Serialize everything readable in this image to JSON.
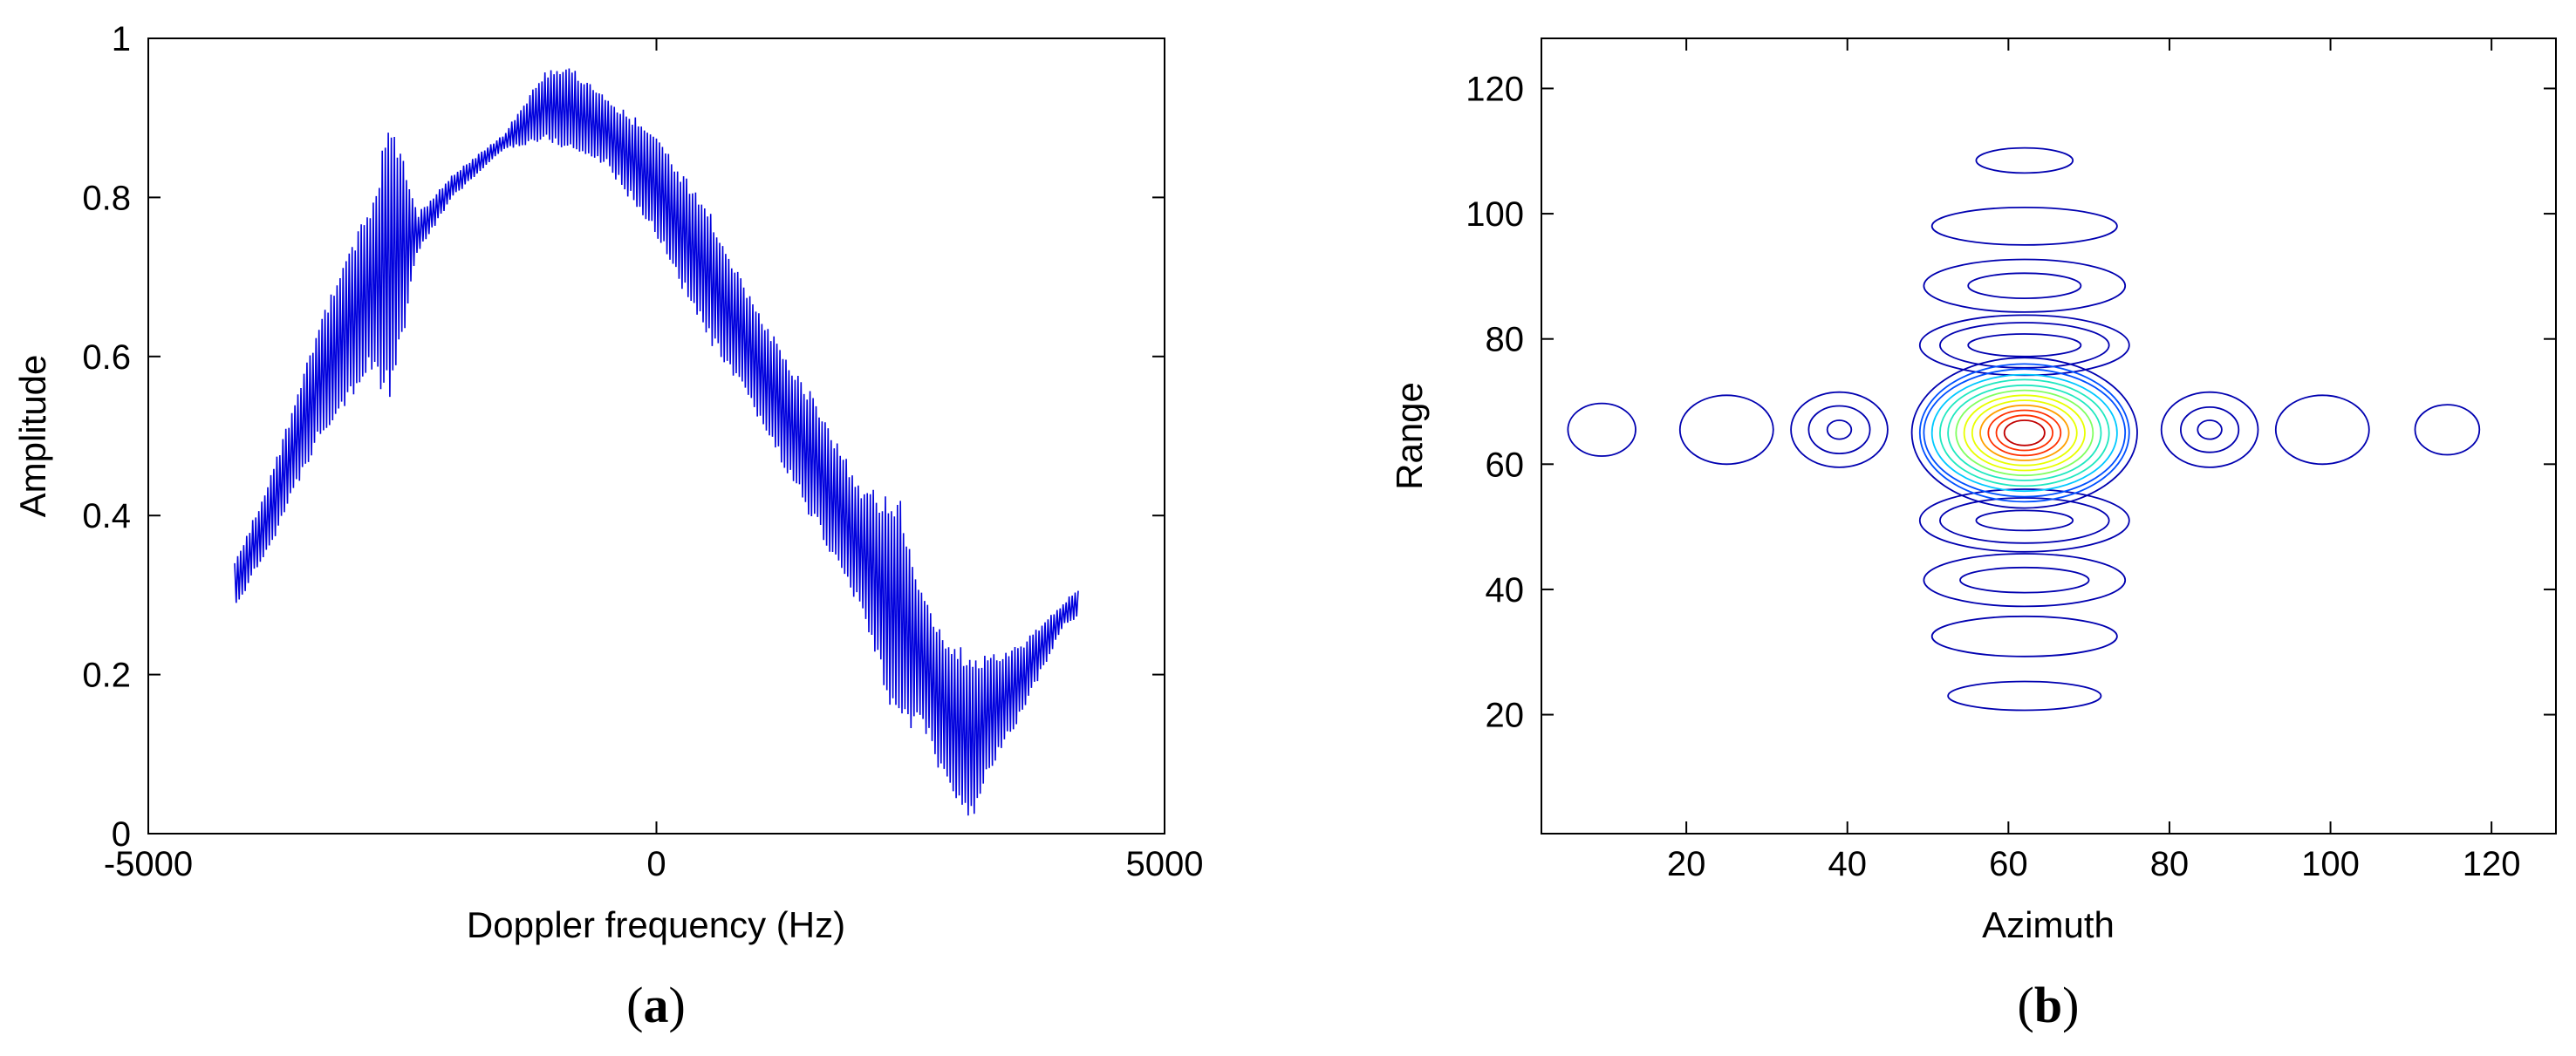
{
  "chart_data": [
    {
      "type": "line",
      "caption_open": "(",
      "caption_letter": "a",
      "caption_close": ")",
      "xlabel": "Doppler frequency (Hz)",
      "ylabel": "Amplitude",
      "xlim": [
        -5000,
        5000
      ],
      "ylim": [
        0,
        1
      ],
      "xticks": [
        -5000,
        0,
        5000
      ],
      "yticks": [
        0,
        0.2,
        0.4,
        0.6,
        0.8,
        1
      ],
      "xtick_labels": [
        "-5000",
        "0",
        "5000"
      ],
      "ytick_labels": [
        "0",
        "0.2",
        "0.4",
        "0.6",
        "0.8",
        "1"
      ],
      "grid": false,
      "legend": "none",
      "line_color": "#0000dd",
      "envelope": {
        "x": [
          -4150,
          -3800,
          -3300,
          -2800,
          -2700,
          -2600,
          -2350,
          -2000,
          -1500,
          -1100,
          -900,
          -500,
          0,
          500,
          1000,
          1500,
          2000,
          2400,
          2600,
          2900,
          3100,
          3300,
          3600,
          4000,
          4150
        ],
        "upper": [
          0.34,
          0.45,
          0.65,
          0.8,
          0.86,
          0.9,
          0.78,
          0.83,
          0.88,
          0.96,
          0.97,
          0.93,
          0.88,
          0.79,
          0.66,
          0.56,
          0.44,
          0.42,
          0.31,
          0.24,
          0.23,
          0.23,
          0.24,
          0.29,
          0.31
        ],
        "lower": [
          0.28,
          0.36,
          0.5,
          0.58,
          0.55,
          0.54,
          0.73,
          0.8,
          0.86,
          0.87,
          0.86,
          0.84,
          0.75,
          0.62,
          0.52,
          0.4,
          0.28,
          0.12,
          0.14,
          0.04,
          0.01,
          0.08,
          0.15,
          0.26,
          0.27
        ]
      }
    },
    {
      "type": "contour",
      "caption_open": "(",
      "caption_letter": "b",
      "caption_close": ")",
      "xlabel": "Azimuth",
      "ylabel": "Range",
      "xlim": [
        2,
        128
      ],
      "ylim": [
        1,
        128
      ],
      "xticks": [
        20,
        40,
        60,
        80,
        100,
        120
      ],
      "yticks": [
        20,
        40,
        60,
        80,
        100,
        120
      ],
      "xtick_labels": [
        "20",
        "40",
        "60",
        "80",
        "100",
        "120"
      ],
      "ytick_labels": [
        "20",
        "40",
        "60",
        "80",
        "100",
        "120"
      ],
      "grid": false,
      "legend": "none",
      "colormap": [
        "#0000b0",
        "#0050ff",
        "#00c8ff",
        "#20e8c0",
        "#80ff60",
        "#e8ff00",
        "#ffa000",
        "#ff3000",
        "#c00000"
      ],
      "peak": {
        "azimuth": 62,
        "range": 65
      },
      "main_lobe": {
        "rx": [
          14,
          13,
          12.5,
          11.5,
          10.5,
          9.5,
          8.5,
          7.5,
          6.5,
          5.5,
          4.5,
          3.5,
          2.5
        ],
        "ry": [
          12,
          11,
          10.2,
          9.3,
          8.5,
          7.6,
          6.8,
          6,
          5.2,
          4.4,
          3.6,
          2.8,
          2
        ]
      },
      "azimuth_sidelobes": [
        {
          "azimuth": 9.5,
          "range": 65.5,
          "rx": [
            4.2
          ],
          "ry": [
            4.2
          ]
        },
        {
          "azimuth": 25,
          "range": 65.5,
          "rx": [
            5.8
          ],
          "ry": [
            5.5
          ]
        },
        {
          "azimuth": 39,
          "range": 65.5,
          "rx": [
            6,
            3.8,
            1.5
          ],
          "ry": [
            6,
            3.8,
            1.5
          ]
        },
        {
          "azimuth": 85,
          "range": 65.5,
          "rx": [
            6,
            3.6,
            1.5
          ],
          "ry": [
            6,
            3.6,
            1.5
          ]
        },
        {
          "azimuth": 99,
          "range": 65.5,
          "rx": [
            5.8
          ],
          "ry": [
            5.5
          ]
        },
        {
          "azimuth": 114.5,
          "range": 65.5,
          "rx": [
            4
          ],
          "ry": [
            4
          ]
        }
      ],
      "range_sidelobes": [
        {
          "azimuth": 62,
          "range": 108.5,
          "rx": [
            6
          ],
          "ry": [
            2
          ]
        },
        {
          "azimuth": 62,
          "range": 98,
          "rx": [
            11.5
          ],
          "ry": [
            3
          ]
        },
        {
          "azimuth": 62,
          "range": 88.5,
          "rx": [
            12.5,
            7
          ],
          "ry": [
            4.2,
            2
          ]
        },
        {
          "azimuth": 62,
          "range": 79,
          "rx": [
            13,
            10.5,
            7
          ],
          "ry": [
            4.8,
            3.6,
            1.8
          ]
        },
        {
          "azimuth": 62,
          "range": 51,
          "rx": [
            13,
            10.5,
            6
          ],
          "ry": [
            5,
            3.6,
            1.6
          ]
        },
        {
          "azimuth": 62,
          "range": 41.5,
          "rx": [
            12.5,
            8
          ],
          "ry": [
            4.2,
            2
          ]
        },
        {
          "azimuth": 62,
          "range": 32.5,
          "rx": [
            11.5
          ],
          "ry": [
            3.2
          ]
        },
        {
          "azimuth": 62,
          "range": 23,
          "rx": [
            9.5
          ],
          "ry": [
            2.3
          ]
        }
      ]
    }
  ]
}
